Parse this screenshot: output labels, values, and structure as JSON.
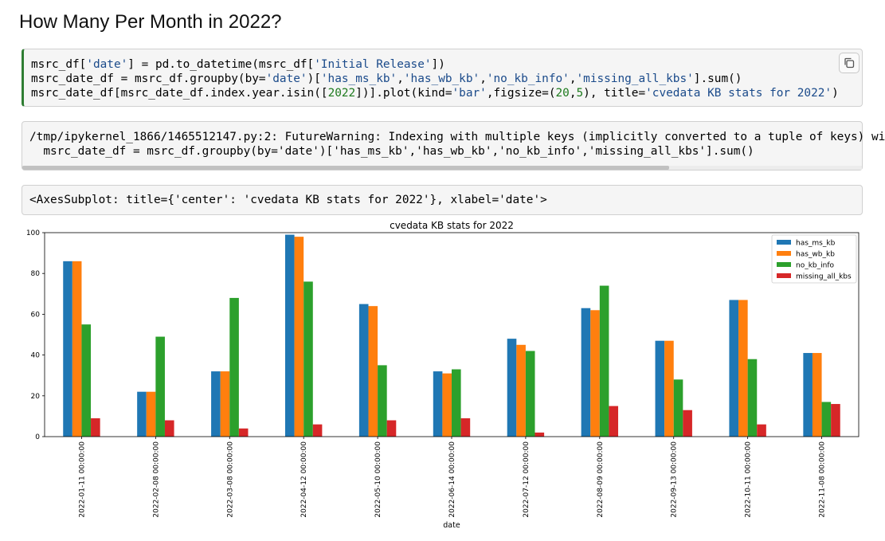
{
  "heading": "How Many Per Month in 2022?",
  "code_cell": {
    "line1": {
      "a": "msrc_df[",
      "b": "'date'",
      "c": "] = pd.to_datetime(msrc_df[",
      "d": "'Initial Release'",
      "e": "])"
    },
    "line2": {
      "a": "msrc_date_df = msrc_df.groupby(by=",
      "b": "'date'",
      "c": ")[",
      "d": "'has_ms_kb'",
      "e": ",",
      "f": "'has_wb_kb'",
      "g": ",",
      "h": "'no_kb_info'",
      "i": ",",
      "j": "'missing_all_kbs'",
      "k": "].sum()"
    },
    "line3": {
      "a": "msrc_date_df[msrc_date_df.index.year.isin([",
      "b": "2022",
      "c": "])].plot(kind=",
      "d": "'bar'",
      "e": ",figsize=(",
      "f": "20",
      "g": ",",
      "h": "5",
      "i": "), title=",
      "j": "'cvedata KB stats for 2022'",
      "k": ")"
    },
    "copy_icon": "copy-icon"
  },
  "warning_output": {
    "line1": "/tmp/ipykernel_1866/1465512147.py:2: FutureWarning: Indexing with multiple keys (implicitly converted to a tuple of keys) wi",
    "line2": "  msrc_date_df = msrc_df.groupby(by='date')['has_ms_kb','has_wb_kb','no_kb_info','missing_all_kbs'].sum()"
  },
  "result_output": "<AxesSubplot: title={'center': 'cvedata KB stats for 2022'}, xlabel='date'>",
  "chart_data": {
    "type": "bar",
    "title": "cvedata KB stats for 2022",
    "xlabel": "date",
    "ylabel": "",
    "ylim": [
      0,
      100
    ],
    "yticks": [
      0,
      20,
      40,
      60,
      80,
      100
    ],
    "grid": false,
    "legend_position": "top-right",
    "categories": [
      "2022-01-11 00:00:00",
      "2022-02-08 00:00:00",
      "2022-03-08 00:00:00",
      "2022-04-12 00:00:00",
      "2022-05-10 00:00:00",
      "2022-06-14 00:00:00",
      "2022-07-12 00:00:00",
      "2022-08-09 00:00:00",
      "2022-09-13 00:00:00",
      "2022-10-11 00:00:00",
      "2022-11-08 00:00:00"
    ],
    "series": [
      {
        "name": "has_ms_kb",
        "color": "#1f77b4",
        "values": [
          86,
          22,
          32,
          99,
          65,
          32,
          48,
          63,
          47,
          67,
          41
        ]
      },
      {
        "name": "has_wb_kb",
        "color": "#ff7f0e",
        "values": [
          86,
          22,
          32,
          98,
          64,
          31,
          45,
          62,
          47,
          67,
          41
        ]
      },
      {
        "name": "no_kb_info",
        "color": "#2ca02c",
        "values": [
          55,
          49,
          68,
          76,
          35,
          33,
          42,
          74,
          28,
          38,
          17
        ]
      },
      {
        "name": "missing_all_kbs",
        "color": "#d62728",
        "values": [
          9,
          8,
          4,
          6,
          8,
          9,
          2,
          15,
          13,
          6,
          16
        ]
      }
    ]
  }
}
